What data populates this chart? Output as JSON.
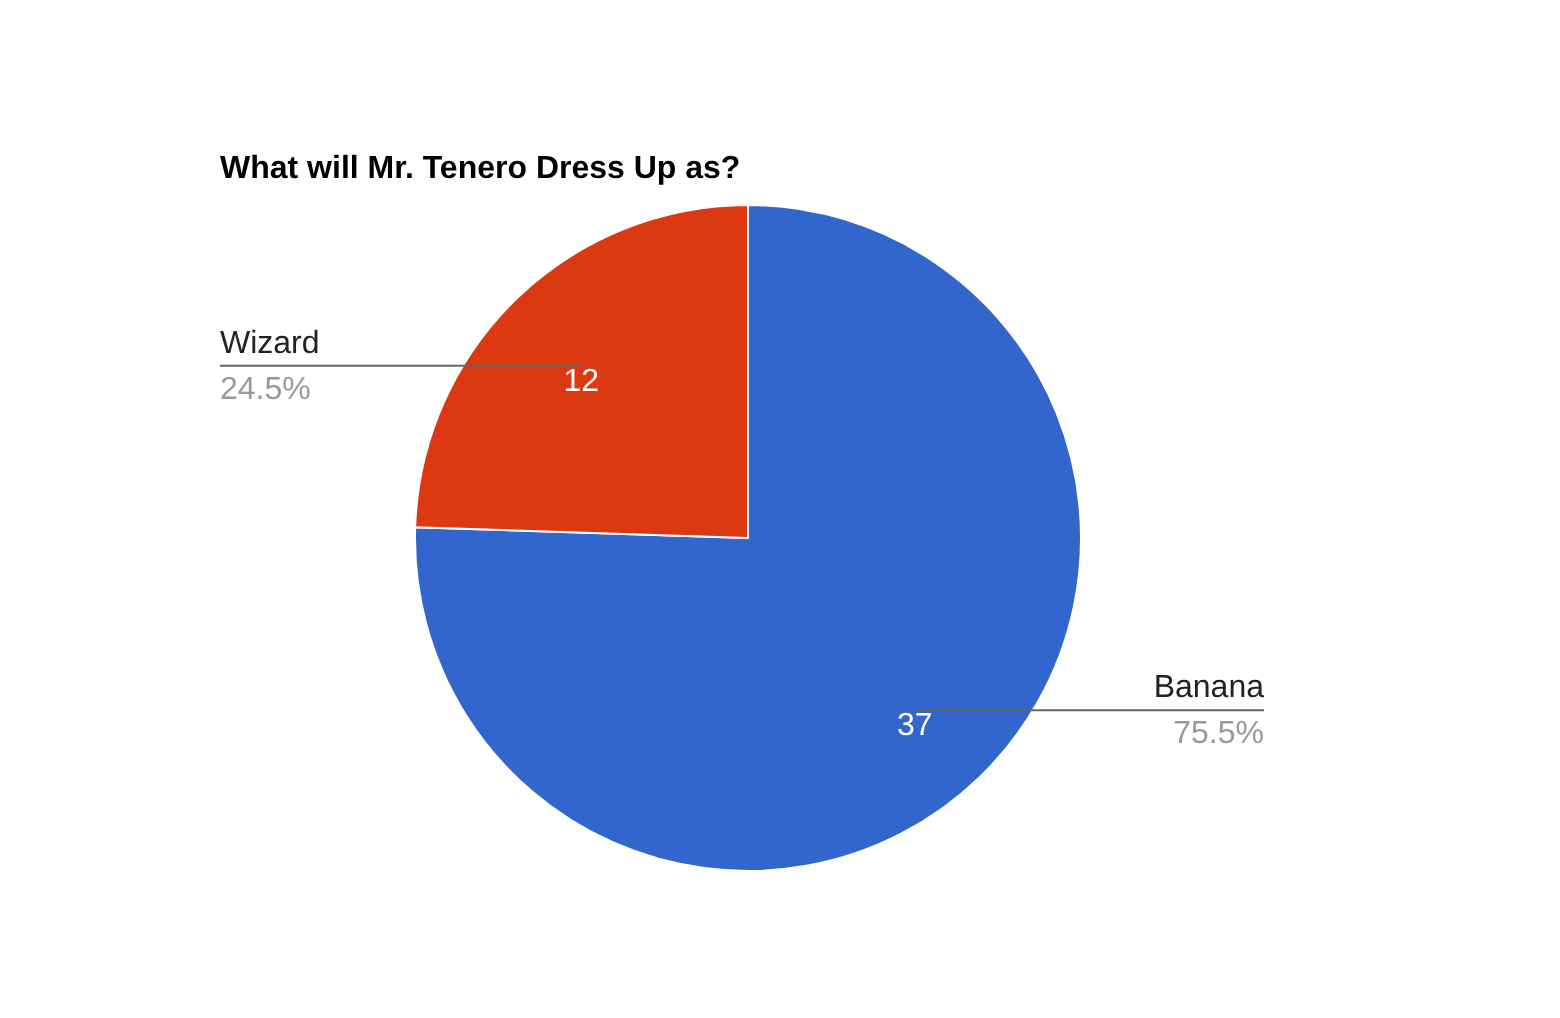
{
  "chart_data": {
    "type": "pie",
    "title": "What will Mr. Tenero Dress Up as?",
    "categories": [
      "Banana",
      "Wizard"
    ],
    "values": [
      37,
      12
    ],
    "colors": [
      "#3366cc",
      "#dc3912"
    ],
    "data_labels": true,
    "legend": false,
    "annotations": [
      {
        "text": "75.5%",
        "x": "Banana"
      },
      {
        "text": "24.5%",
        "x": "Wizard"
      }
    ]
  }
}
